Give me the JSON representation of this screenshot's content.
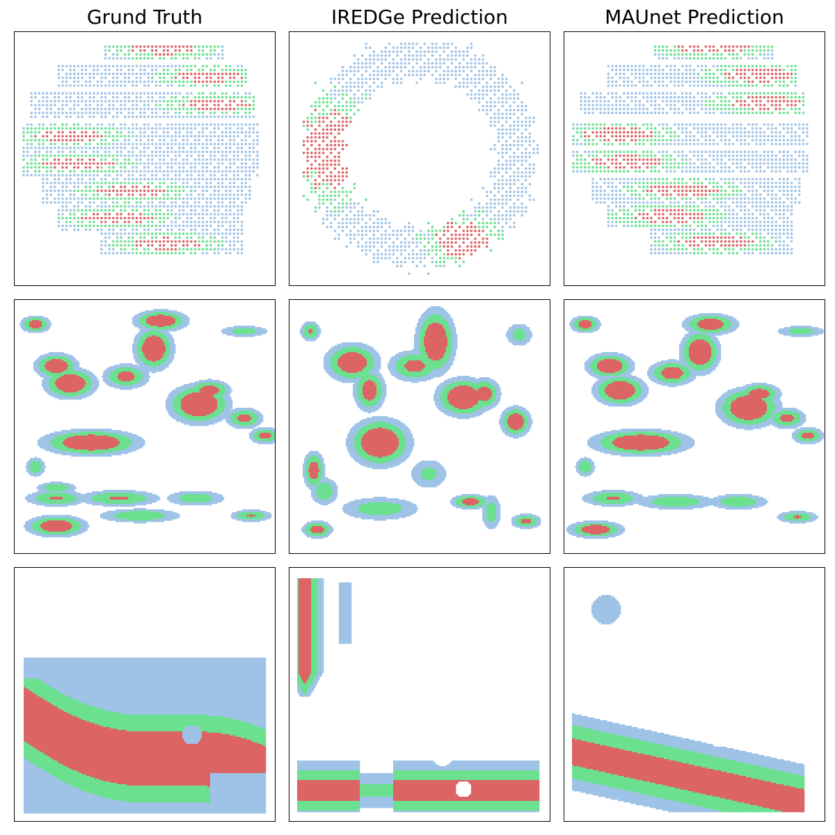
{
  "chart_data": {
    "type": "scatter",
    "layout": "3x3 grid of panels, no axes ticks",
    "columns": [
      "Grund Truth",
      "IREDGe Prediction",
      "MAUnet Prediction"
    ],
    "colors": {
      "low": "#9ec3e6",
      "mid": "#6be08f",
      "high": "#dc6464"
    },
    "grid": false,
    "legend": "none",
    "rows": [
      {
        "kind": "dot-grid",
        "note": "sparse point samples on a regular lattice"
      },
      {
        "kind": "dense-map",
        "note": "densely sampled hotspot map"
      },
      {
        "kind": "dense-map",
        "note": "smooth large-scale band map"
      }
    ]
  }
}
